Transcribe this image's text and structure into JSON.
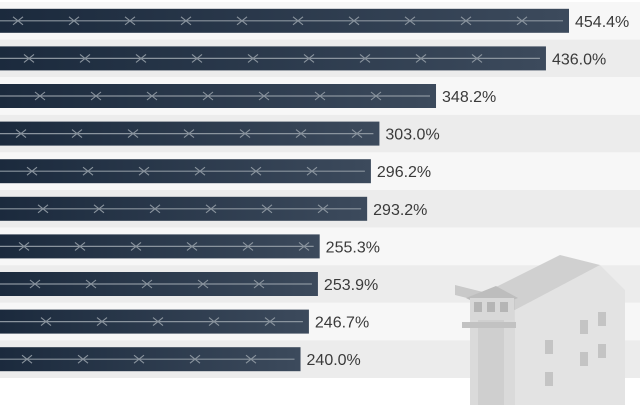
{
  "chart_data": {
    "type": "bar",
    "orientation": "horizontal",
    "values": [
      454.4,
      436.0,
      348.2,
      303.0,
      296.2,
      293.2,
      255.3,
      253.9,
      246.7,
      240.0
    ],
    "value_labels": [
      "454.4%",
      "436.0%",
      "348.2%",
      "303.0%",
      "296.2%",
      "293.2%",
      "255.3%",
      "253.9%",
      "246.7%",
      "240.0%"
    ],
    "grid": false,
    "legend": "none"
  },
  "colors": {
    "bar_left": "#1b2a3d",
    "bar_right": "#3c4a5c",
    "barbed_wire": "#8a949e",
    "stripe_light": "#f7f7f7",
    "stripe_dark": "#ececec",
    "label_text": "#3a3a3a",
    "prison_icon": "#d6d6d6"
  },
  "decorations": {
    "bar_texture_icon": "barbed-wire-icon",
    "corner_illustration": "prison-building-icon"
  }
}
